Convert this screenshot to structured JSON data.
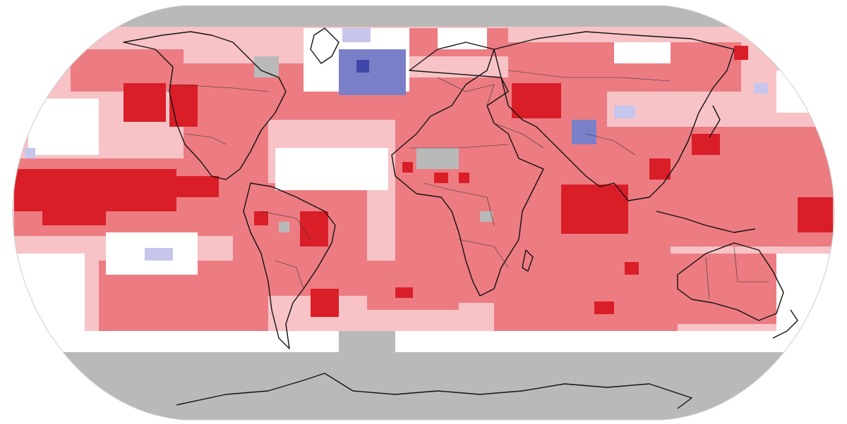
{
  "map": {
    "projection": "Robinson",
    "layers": [
      "temperature-anomaly-grid",
      "country-borders",
      "coastlines"
    ]
  },
  "legend_colors": {
    "no_data": "#b9b9b9",
    "strong_warm": "#da1e28",
    "warm": "#ec7c82",
    "slight_warm": "#f7c3c7",
    "neutral": "#ffffff",
    "slight_cool": "#c6c6ec",
    "cool": "#7a80c8",
    "strong_cool": "#3f47a8",
    "outline": "#111111"
  }
}
